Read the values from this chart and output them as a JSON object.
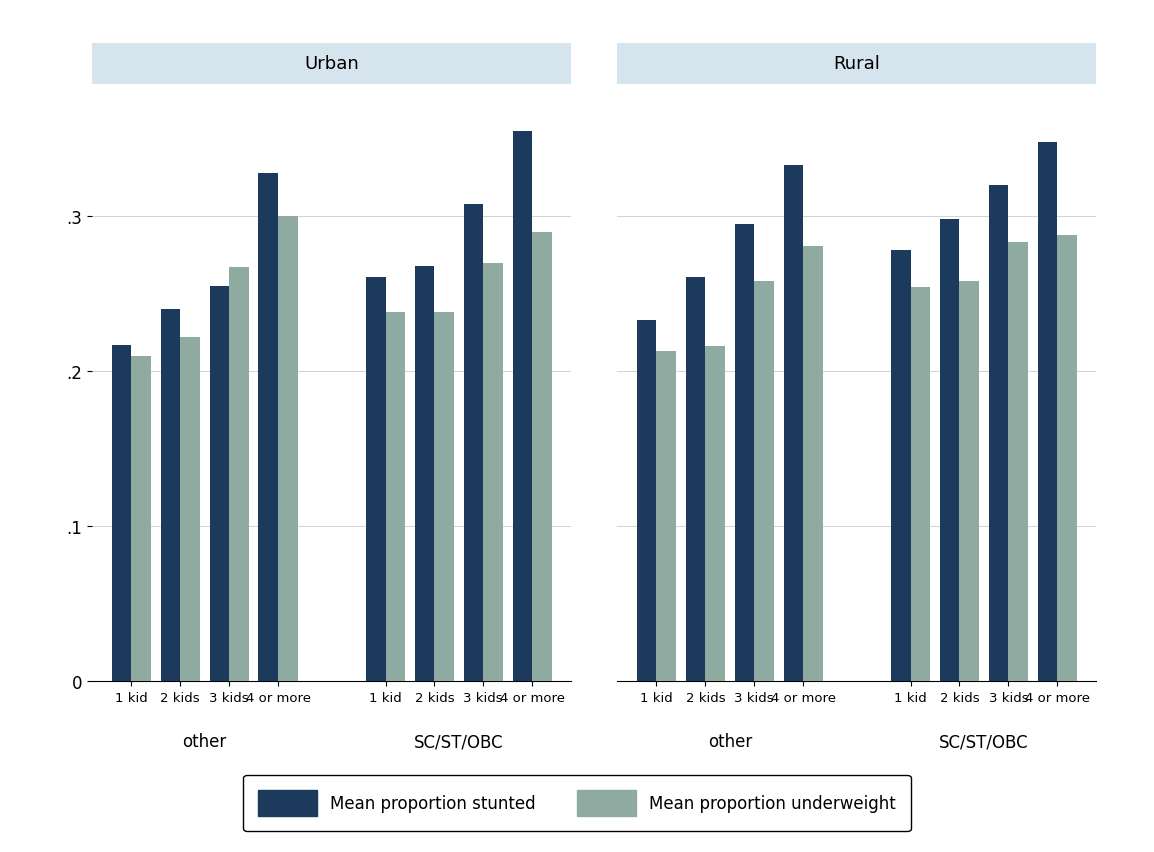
{
  "urban": {
    "other": {
      "labels": [
        "1 kid",
        "2 kids",
        "3 kids",
        "4 or more"
      ],
      "stunted": [
        0.217,
        0.24,
        0.255,
        0.328
      ],
      "underweight": [
        0.21,
        0.222,
        0.267,
        0.3
      ]
    },
    "scst": {
      "labels": [
        "1 kid",
        "2 kids",
        "3 kids",
        "4 or more"
      ],
      "stunted": [
        0.261,
        0.268,
        0.308,
        0.355
      ],
      "underweight": [
        0.238,
        0.238,
        0.27,
        0.29
      ]
    }
  },
  "rural": {
    "other": {
      "labels": [
        "1 kid",
        "2 kids",
        "3 kids",
        "4 or more"
      ],
      "stunted": [
        0.233,
        0.261,
        0.295,
        0.333
      ],
      "underweight": [
        0.213,
        0.216,
        0.258,
        0.281
      ]
    },
    "scst": {
      "labels": [
        "1 kid",
        "2 kids",
        "3 kids",
        "4 or more"
      ],
      "stunted": [
        0.278,
        0.298,
        0.32,
        0.348
      ],
      "underweight": [
        0.254,
        0.258,
        0.283,
        0.288
      ]
    }
  },
  "color_stunted": "#1B3A5C",
  "color_underweight": "#8FAAA0",
  "panel_title_bg": "#D6E4EE",
  "bar_width": 0.4,
  "ylim": [
    0,
    0.385
  ],
  "yticks": [
    0,
    0.1,
    0.2,
    0.3
  ],
  "ytick_labels": [
    "0",
    ".1",
    ".2",
    ".3"
  ],
  "legend_stunted": "Mean proportion stunted",
  "legend_underweight": "Mean proportion underweight",
  "group_labels": [
    "other",
    "SC/ST/OBC"
  ],
  "panel_title_urban": "Urban",
  "panel_title_rural": "Rural"
}
